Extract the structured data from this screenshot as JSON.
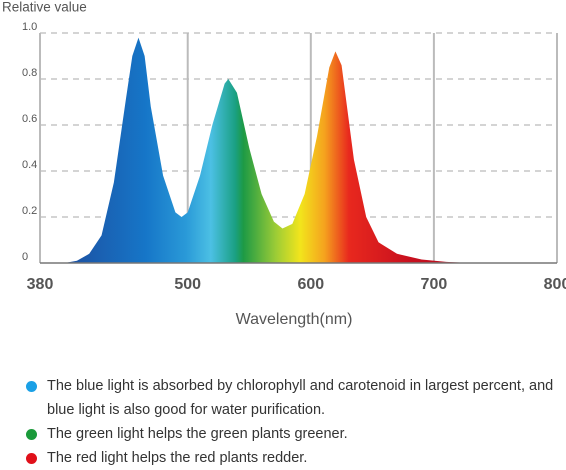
{
  "chart_data": {
    "type": "area",
    "y_label": "Relative value",
    "x_label": "Wavelength(nm)",
    "xlim": [
      380,
      800
    ],
    "xticks": [
      380,
      500,
      600,
      700,
      800
    ],
    "ylim": [
      0,
      1
    ],
    "yticks": [
      0,
      0.2,
      0.4,
      0.6,
      0.8,
      {
        "value": 1,
        "label": "1.0"
      }
    ],
    "grid": true,
    "x": [
      400,
      410,
      420,
      430,
      440,
      450,
      455,
      460,
      465,
      470,
      480,
      490,
      495,
      500,
      510,
      520,
      530,
      533,
      540,
      550,
      560,
      570,
      577,
      585,
      595,
      605,
      615,
      620,
      625,
      635,
      645,
      655,
      670,
      690,
      710,
      730
    ],
    "values": [
      0,
      0.01,
      0.04,
      0.12,
      0.35,
      0.72,
      0.9,
      0.98,
      0.9,
      0.68,
      0.38,
      0.22,
      0.2,
      0.22,
      0.38,
      0.6,
      0.78,
      0.8,
      0.74,
      0.5,
      0.3,
      0.18,
      0.15,
      0.17,
      0.3,
      0.55,
      0.85,
      0.92,
      0.86,
      0.45,
      0.2,
      0.09,
      0.04,
      0.015,
      0.005,
      0
    ]
  },
  "notes": [
    {
      "text": "The blue light is absorbed by chlorophyll and carotenoid in largest percent, and blue light is also good for water purification.",
      "color": "#1aa0e6"
    },
    {
      "text": "The green light helps the green plants greener.",
      "color": "#1a9a3a"
    },
    {
      "text": "The red light helps the red plants redder.",
      "color": "#e0101a"
    }
  ]
}
